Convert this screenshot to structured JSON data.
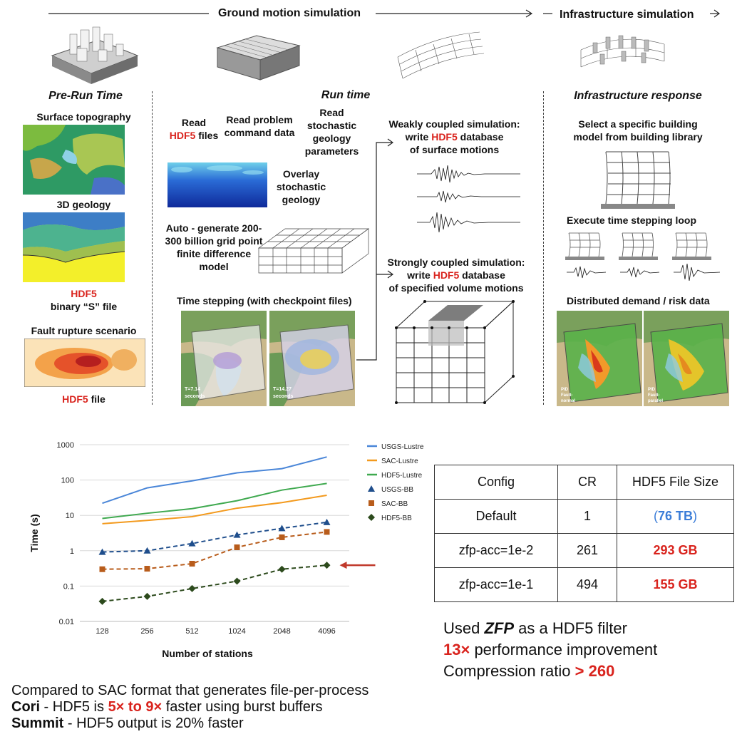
{
  "header": {
    "ground": "Ground motion simulation",
    "infra": "Infrastructure simulation"
  },
  "left": {
    "title": "Pre-Run Time",
    "surface": "Surface topography",
    "geology": "3D geology",
    "hdf5": "HDF5",
    "binary": "binary “S” file",
    "fault": "Fault rupture scenario",
    "hdf5_file_a": "HDF5",
    "hdf5_file_b": " file"
  },
  "middle": {
    "title": "Run time",
    "read1_a": "Read",
    "read1_b": "HDF5",
    "read1_c": " files",
    "read2": "Read problem command data",
    "read3": "Read stochastic geology parameters",
    "overlay": "Overlay stochastic geology",
    "autogen": "Auto - generate 200-300 billion grid point finite difference model",
    "timestep": "Time stepping (with checkpoint files)",
    "t1_a": "T=7.14",
    "t1_b": "seconds",
    "t2_a": "T=14.27",
    "t2_b": "seconds",
    "weak_a": "Weakly coupled simulation:",
    "weak_b": "write ",
    "weak_c": "HDF5",
    "weak_d": " database",
    "weak_e": "of surface motions",
    "strong_a": "Strongly coupled simulation:",
    "strong_b": "write ",
    "strong_c": "HDF5",
    "strong_d": " database",
    "strong_e": "of specified volume motions"
  },
  "right": {
    "title": "Infrastructure response",
    "select": "Select a specific building model from building library",
    "execute": "Execute time stepping loop",
    "distributed": "Distributed demand / risk data",
    "m1_a": "PID",
    "m1_b": "Fault-",
    "m1_c": "normal",
    "m2_a": "PID",
    "m2_b": "Fault-",
    "m2_c": "parallel"
  },
  "chart_data": {
    "type": "line",
    "xlabel": "Number of stations",
    "ylabel": "Time (s)",
    "y_scale": "log",
    "ylim": [
      0.01,
      1000
    ],
    "y_ticks": [
      "1000",
      "100",
      "10",
      "1",
      "0.1",
      "0.01"
    ],
    "categories": [
      "128",
      "256",
      "512",
      "1024",
      "2048",
      "4096"
    ],
    "legend_position": "right",
    "series": [
      {
        "name": "USGS-Lustre",
        "color": "#4a86d8",
        "style": "solid",
        "values": [
          22,
          60,
          95,
          160,
          210,
          450
        ]
      },
      {
        "name": "SAC-Lustre",
        "color": "#f39a1e",
        "style": "solid",
        "values": [
          5.8,
          7.2,
          9.2,
          16,
          23,
          37
        ]
      },
      {
        "name": "HDF5-Lustre",
        "color": "#3fa94f",
        "style": "solid",
        "values": [
          8.2,
          11.5,
          15.5,
          26,
          52,
          80
        ]
      },
      {
        "name": "USGS-BB",
        "color": "#1f4e8c",
        "style": "dashed",
        "marker": "triangle",
        "values": [
          0.92,
          1.0,
          1.6,
          2.8,
          4.3,
          6.4
        ]
      },
      {
        "name": "SAC-BB",
        "color": "#b85c1b",
        "style": "dashed",
        "marker": "square",
        "values": [
          0.3,
          0.31,
          0.43,
          1.25,
          2.4,
          3.4
        ]
      },
      {
        "name": "HDF5-BB",
        "color": "#2c4a1c",
        "style": "dashed",
        "marker": "diamond",
        "values": [
          0.037,
          0.051,
          0.085,
          0.138,
          0.3,
          0.39
        ]
      }
    ],
    "annotation_color": "#c0392b"
  },
  "table": {
    "headers": [
      "Config",
      "CR",
      "HDF5 File Size"
    ],
    "rows": [
      [
        "Default",
        "1",
        "(",
        "76 TB",
        ")"
      ],
      [
        "zfp-acc=1e-2",
        "261",
        "",
        "293 GB",
        ""
      ],
      [
        "zfp-acc=1e-1",
        "494",
        "",
        "155 GB",
        ""
      ]
    ]
  },
  "notes_right": {
    "l1_a": "Used ",
    "l1_b": "ZFP",
    "l1_c": " as a HDF5 filter",
    "l2_a": "13×",
    "l2_b": " performance improvement",
    "l3_a": "Compression ratio ",
    "l3_b": "> 260"
  },
  "notes_bottom": {
    "l1": "Compared to SAC format that generates file-per-process",
    "l2_a": "Cori",
    "l2_b": " - HDF5 is ",
    "l2_c": "5× to 9×",
    "l2_d": " faster using burst buffers",
    "l3_a": "Summit",
    "l3_b": " - HDF5 output is 20% faster"
  },
  "colors": {
    "red": "#d9231d",
    "blue": "#3b7dd8"
  }
}
